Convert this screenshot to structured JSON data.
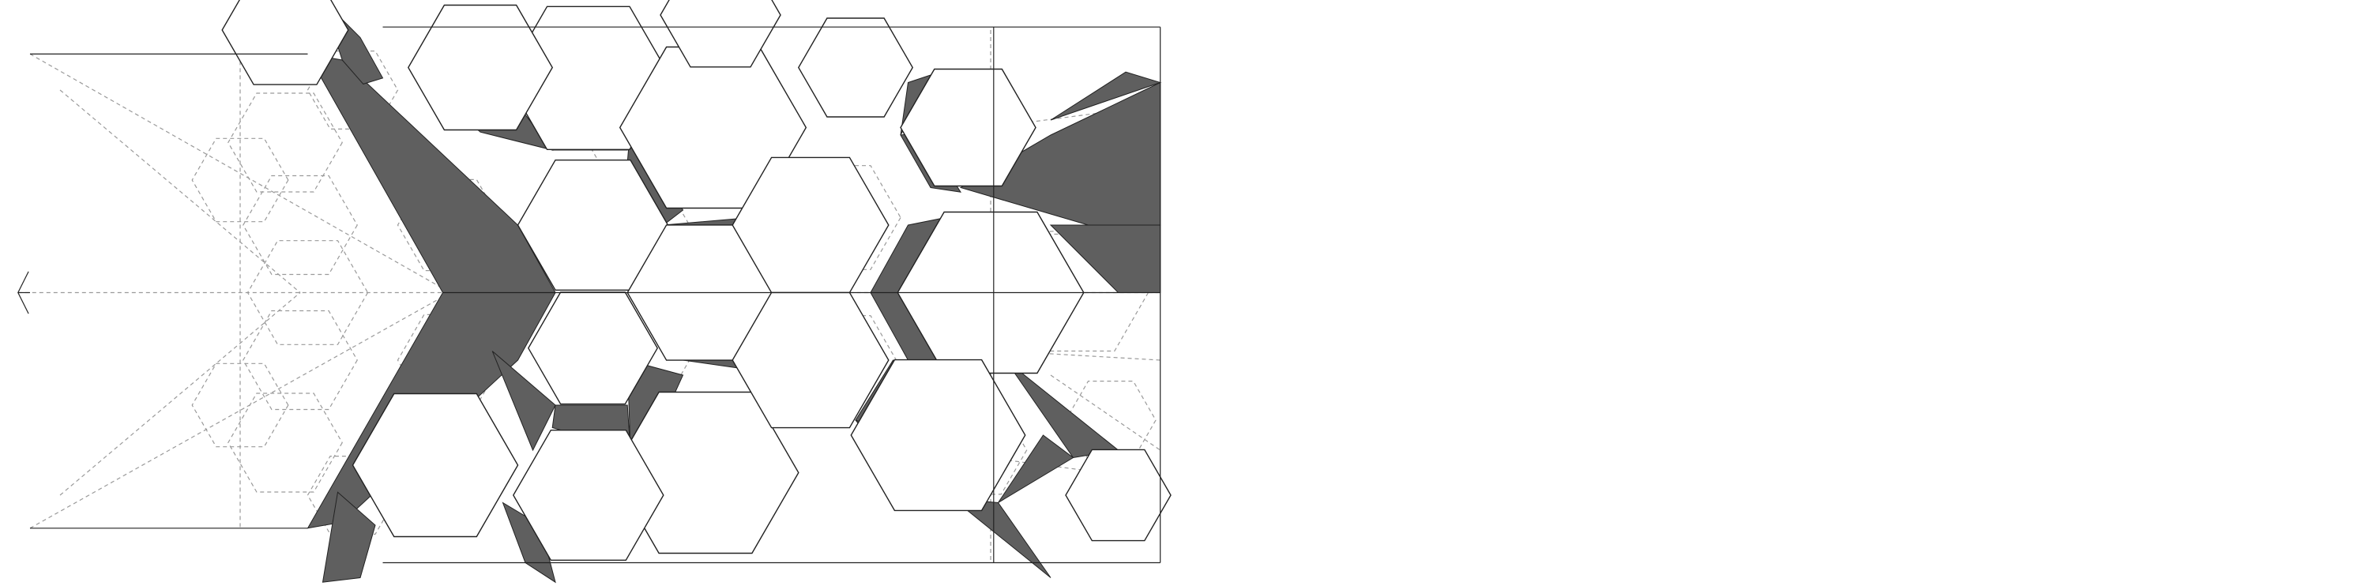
{
  "drawing": {
    "description_visible_text": "",
    "line_color": "#222222",
    "hidden_line_color": "#9a9a9a",
    "shade_color": "#5f5f5f",
    "background": "#ffffff"
  }
}
